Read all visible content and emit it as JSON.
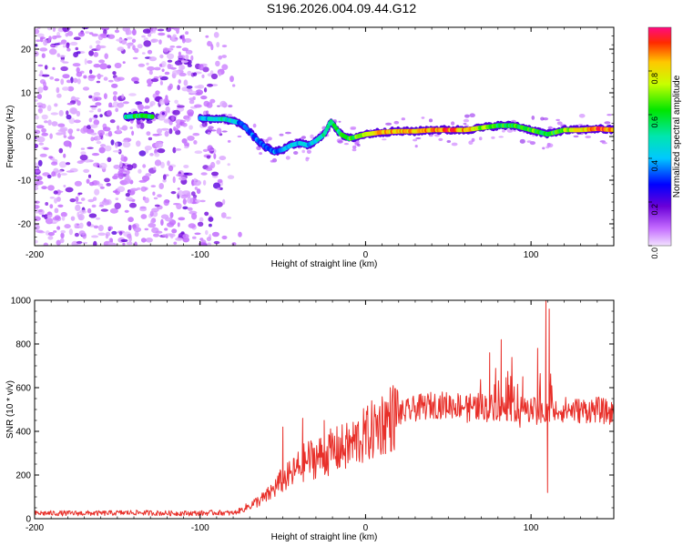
{
  "page": {
    "title": "S196.2026.004.09.44.G12"
  },
  "chart_data": [
    {
      "type": "heatmap",
      "title": "S196.2026.004.09.44.G12",
      "xlabel": "Height of straight line (km)",
      "ylabel": "Frequency (Hz)",
      "xlim": [
        -200,
        150
      ],
      "ylim": [
        -25,
        25
      ],
      "xticks": [
        -200,
        -100,
        0,
        100
      ],
      "xtick_labels": [
        "-200",
        "-100",
        "0",
        "100"
      ],
      "yticks": [
        -20,
        -10,
        0,
        10,
        20
      ],
      "ytick_labels": [
        "-20",
        "-10",
        "0",
        "10",
        "20"
      ],
      "colorbar": {
        "label": "Normalized spectral amplitude",
        "range": [
          0,
          1
        ],
        "ticks": [
          0.0,
          0.2,
          0.4,
          0.6,
          0.8
        ],
        "tick_labels": [
          "0.0",
          "0.2",
          "0.4",
          "0.6",
          "0.8"
        ]
      },
      "ridge": {
        "x": [
          -145,
          -135,
          -128,
          -100,
          -92,
          -85,
          -80,
          -75,
          -70,
          -65,
          -60,
          -55,
          -50,
          -45,
          -40,
          -35,
          -30,
          -25,
          -21,
          -18,
          -15,
          -10,
          -5,
          0,
          10,
          20,
          30,
          40,
          50,
          60,
          70,
          80,
          90,
          100,
          110,
          120,
          130,
          140,
          150
        ],
        "y": [
          4.5,
          4.8,
          4.5,
          4.2,
          4.0,
          4.0,
          3.5,
          3.0,
          1.0,
          -1.0,
          -2.5,
          -3.5,
          -3.0,
          -2.0,
          -1.5,
          -2.0,
          -1.0,
          0.5,
          3.5,
          2.0,
          0.5,
          -0.5,
          0.0,
          0.5,
          1.0,
          1.2,
          1.2,
          1.5,
          1.5,
          1.5,
          2.0,
          2.5,
          2.5,
          1.5,
          0.5,
          1.5,
          1.5,
          1.8,
          1.5
        ],
        "amplitude": [
          0.5,
          0.6,
          0.55,
          0.4,
          0.45,
          0.5,
          0.4,
          0.35,
          0.3,
          0.3,
          0.3,
          0.35,
          0.35,
          0.4,
          0.45,
          0.4,
          0.45,
          0.5,
          0.55,
          0.55,
          0.6,
          0.6,
          0.65,
          0.75,
          0.8,
          0.85,
          0.8,
          0.85,
          0.9,
          0.85,
          0.7,
          0.6,
          0.6,
          0.65,
          0.55,
          0.7,
          0.8,
          0.9,
          0.85
        ]
      },
      "noise_region_x": [
        -200,
        -75
      ]
    },
    {
      "type": "line",
      "xlabel": "Height of straight line (km)",
      "ylabel": "SNR (10 * v/v)",
      "xlim": [
        -200,
        150
      ],
      "ylim": [
        0,
        1000
      ],
      "xticks": [
        -200,
        -100,
        0,
        100
      ],
      "xtick_labels": [
        "-200",
        "-100",
        "0",
        "100"
      ],
      "yticks": [
        0,
        200,
        400,
        600,
        800,
        1000
      ],
      "ytick_labels": [
        "0",
        "200",
        "400",
        "600",
        "800",
        "1000"
      ],
      "series": [
        {
          "name": "SNR",
          "color": "#e8302a",
          "x": [
            -200,
            -180,
            -160,
            -140,
            -120,
            -100,
            -90,
            -80,
            -75,
            -70,
            -65,
            -60,
            -55,
            -50,
            -45,
            -40,
            -35,
            -30,
            -25,
            -20,
            -15,
            -10,
            -5,
            0,
            5,
            10,
            15,
            20,
            25,
            30,
            40,
            50,
            60,
            70,
            80,
            90,
            100,
            105,
            110,
            115,
            120,
            130,
            140,
            150
          ],
          "y": [
            25,
            25,
            25,
            28,
            25,
            25,
            28,
            25,
            40,
            60,
            80,
            100,
            140,
            180,
            200,
            240,
            270,
            280,
            290,
            310,
            320,
            330,
            360,
            380,
            410,
            440,
            460,
            480,
            490,
            505,
            520,
            520,
            520,
            515,
            510,
            505,
            500,
            490,
            480,
            500,
            500,
            495,
            500,
            480
          ],
          "spikes": [
            {
              "x": -50,
              "y": 420
            },
            {
              "x": -38,
              "y": 460
            },
            {
              "x": -25,
              "y": 450
            },
            {
              "x": -12,
              "y": 380
            },
            {
              "x": 75,
              "y": 760
            },
            {
              "x": 82,
              "y": 820
            },
            {
              "x": 95,
              "y": 650
            },
            {
              "x": 104,
              "y": 780
            },
            {
              "x": 109,
              "y": 1000
            },
            {
              "x": 111,
              "y": 960
            },
            {
              "x": 110,
              "y": 120
            }
          ]
        }
      ]
    }
  ]
}
